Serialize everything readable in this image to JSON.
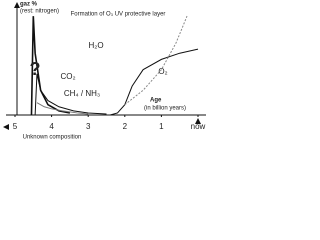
{
  "chart_data": {
    "type": "line",
    "y_label": "gaz %",
    "y_sublabel": "(rest: nitrogen)",
    "x_label": "Age",
    "x_sublabel": "(in billion years)",
    "x_note": "Unknown composition",
    "xlim": [
      5,
      0
    ],
    "xticks": [
      5,
      4,
      3,
      2,
      1,
      {
        "value": 0,
        "label": "now"
      }
    ],
    "ylim": [
      0,
      50
    ],
    "annotations": [
      "?",
      "Formation of O₃ UV protective layer"
    ],
    "series": [
      {
        "name": "H₂O",
        "color": "#111111",
        "dashed": false,
        "x": [
          4.55,
          4.5,
          4.45,
          4.3,
          4.1,
          3.8,
          3.5
        ],
        "values": [
          0,
          48,
          30,
          12,
          5,
          2,
          1
        ]
      },
      {
        "name": "CO₂",
        "color": "#111111",
        "dashed": false,
        "x": [
          4.45,
          4.4,
          4.3,
          4.1,
          3.8,
          3.4,
          3.0,
          2.5
        ],
        "values": [
          0,
          20,
          12,
          7,
          4,
          2,
          1,
          0.5
        ]
      },
      {
        "name": "CH₄ / NH₃",
        "color": "#777777",
        "dashed": false,
        "x": [
          4.4,
          4.2,
          4.0,
          3.7,
          3.3,
          3.0
        ],
        "values": [
          6,
          4,
          3,
          2,
          1,
          0.5
        ]
      },
      {
        "name": "O₂",
        "color": "#111111",
        "dashed": false,
        "x": [
          2.4,
          2.2,
          2.0,
          1.8,
          1.5,
          1.0,
          0.5,
          0
        ],
        "values": [
          0,
          1,
          5,
          14,
          22,
          27,
          30,
          32
        ]
      },
      {
        "name": "O₃",
        "color": "#888888",
        "dashed": true,
        "x": [
          2.0,
          1.5,
          1.0,
          0.6,
          0.3
        ],
        "values": [
          5,
          12,
          22,
          35,
          48
        ]
      }
    ]
  }
}
